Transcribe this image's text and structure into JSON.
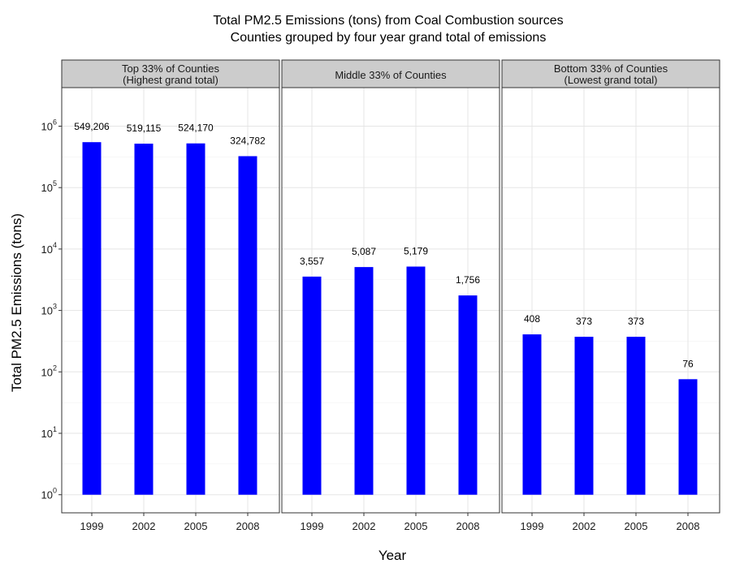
{
  "chart_data": {
    "type": "bar",
    "title": "Total PM2.5 Emissions (tons) from Coal Combustion sources",
    "subtitle": "Counties grouped by four year grand total of emissions",
    "xlabel": "Year",
    "ylabel": "Total PM2.5 Emissions (tons)",
    "y_scale": "log10",
    "ylim": [
      1,
      3000000
    ],
    "y_ticks": [
      {
        "value": 1,
        "base": "10",
        "exp": "0"
      },
      {
        "value": 10,
        "base": "10",
        "exp": "1"
      },
      {
        "value": 100,
        "base": "10",
        "exp": "2"
      },
      {
        "value": 1000,
        "base": "10",
        "exp": "3"
      },
      {
        "value": 10000,
        "base": "10",
        "exp": "4"
      },
      {
        "value": 100000,
        "base": "10",
        "exp": "5"
      },
      {
        "value": 1000000,
        "base": "10",
        "exp": "6"
      }
    ],
    "categories": [
      "1999",
      "2002",
      "2005",
      "2008"
    ],
    "bar_color": "#0000ff",
    "grid": true,
    "facets": [
      {
        "label_lines": [
          "Top 33% of Counties",
          "(Highest grand total)"
        ],
        "values": [
          549206,
          519115,
          524170,
          324782
        ],
        "data_labels": [
          "549,206",
          "519,115",
          "524,170",
          "324,782"
        ]
      },
      {
        "label_lines": [
          "Middle 33% of Counties"
        ],
        "values": [
          3557,
          5087,
          5179,
          1756
        ],
        "data_labels": [
          "3,557",
          "5,087",
          "5,179",
          "1,756"
        ]
      },
      {
        "label_lines": [
          "Bottom 33% of Counties",
          "(Lowest grand total)"
        ],
        "values": [
          408,
          373,
          373,
          76
        ],
        "data_labels": [
          "408",
          "373",
          "373",
          "76"
        ]
      }
    ]
  }
}
